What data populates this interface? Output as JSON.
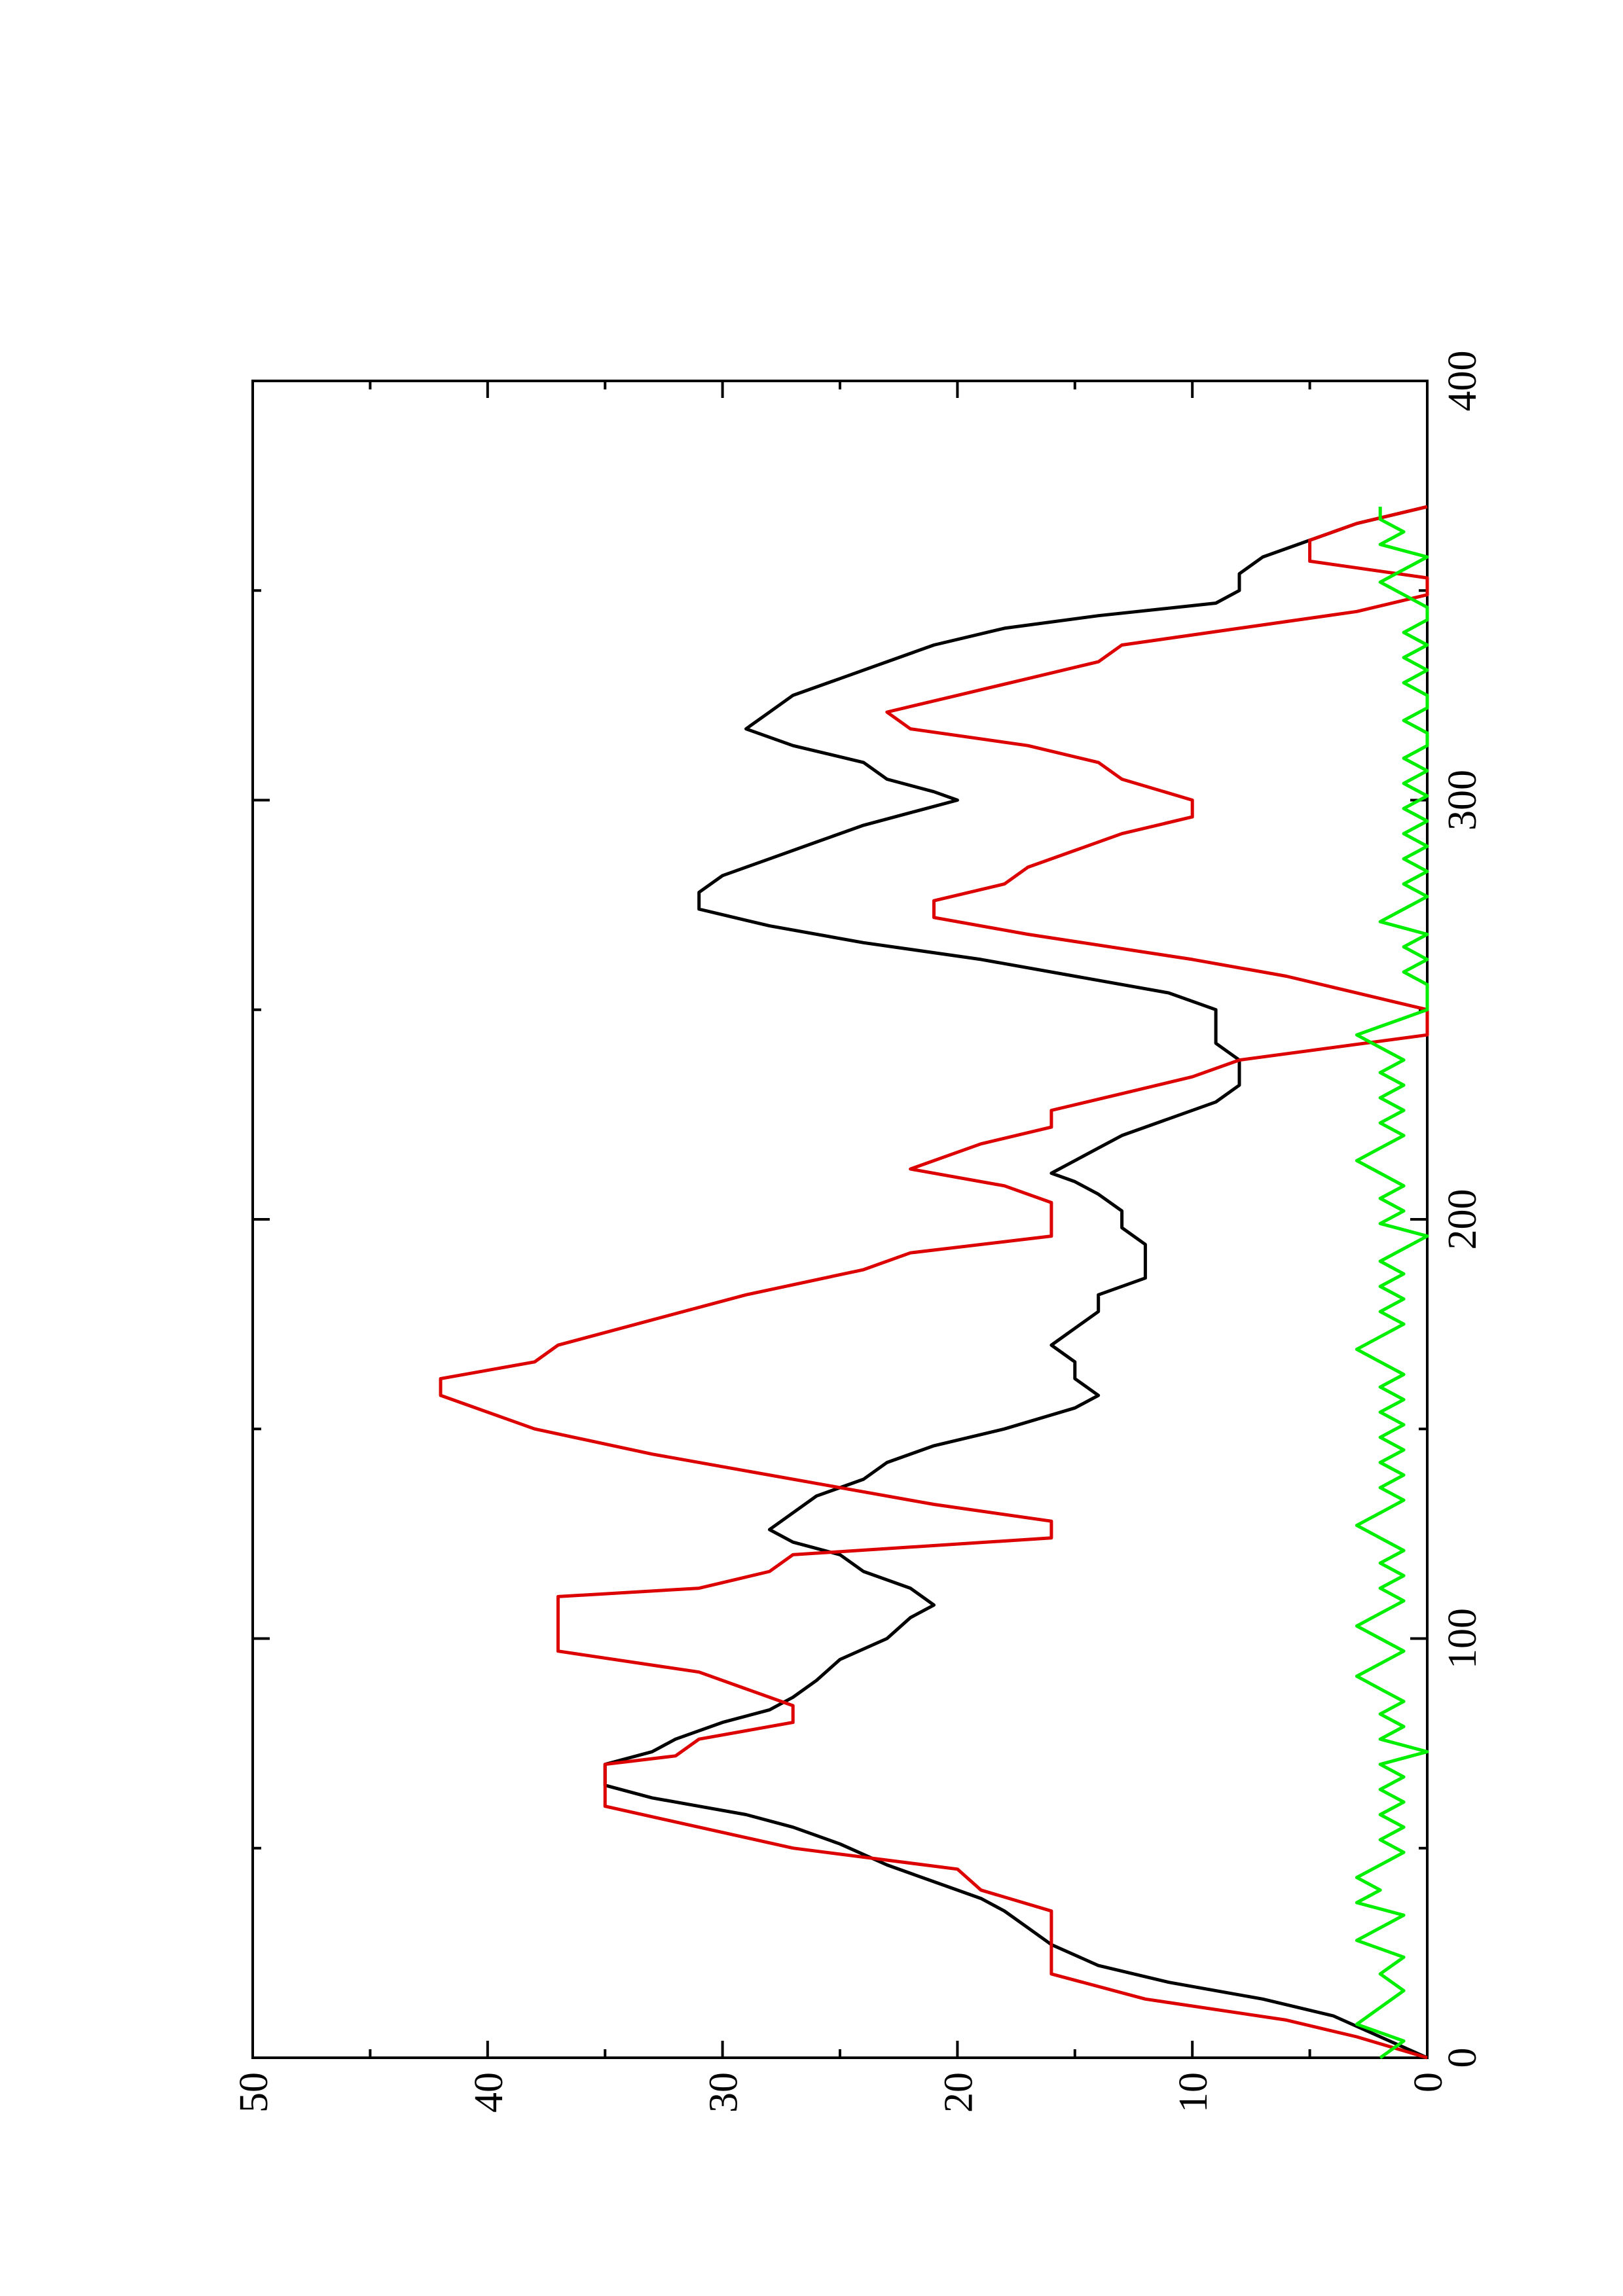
{
  "chart_data": {
    "type": "line",
    "orientation": "rotated-90-ccw",
    "title": "",
    "xlabel": "",
    "ylabel": "",
    "xlim": [
      0,
      400
    ],
    "ylim": [
      0,
      50
    ],
    "x_ticks": [
      0,
      100,
      200,
      300,
      400
    ],
    "x_tick_labels": [
      "0",
      "100",
      "200",
      "300",
      "400"
    ],
    "y_ticks": [
      0,
      10,
      20,
      30,
      40,
      50
    ],
    "y_tick_labels": [
      "0",
      "10",
      "20",
      "30",
      "40",
      "50"
    ],
    "grid": false,
    "legend": "none",
    "series": [
      {
        "color": "#000000",
        "points": [
          [
            0,
            0
          ],
          [
            5,
            2
          ],
          [
            10,
            4
          ],
          [
            14,
            7
          ],
          [
            18,
            11
          ],
          [
            22,
            14
          ],
          [
            27,
            16
          ],
          [
            31,
            17
          ],
          [
            35,
            18
          ],
          [
            38,
            19
          ],
          [
            42,
            21
          ],
          [
            46,
            23
          ],
          [
            51,
            25
          ],
          [
            55,
            27
          ],
          [
            58,
            29
          ],
          [
            60,
            31
          ],
          [
            62,
            33
          ],
          [
            65,
            35
          ],
          [
            68,
            35
          ],
          [
            70,
            35
          ],
          [
            73,
            33
          ],
          [
            76,
            32
          ],
          [
            80,
            30
          ],
          [
            83,
            28
          ],
          [
            86,
            27
          ],
          [
            90,
            26
          ],
          [
            95,
            25
          ],
          [
            100,
            23
          ],
          [
            105,
            22
          ],
          [
            108,
            21
          ],
          [
            112,
            22
          ],
          [
            116,
            24
          ],
          [
            120,
            25
          ],
          [
            123,
            27
          ],
          [
            126,
            28
          ],
          [
            130,
            27
          ],
          [
            134,
            26
          ],
          [
            138,
            24
          ],
          [
            142,
            23
          ],
          [
            146,
            21
          ],
          [
            150,
            18
          ],
          [
            155,
            15
          ],
          [
            158,
            14
          ],
          [
            162,
            15
          ],
          [
            166,
            15
          ],
          [
            170,
            16
          ],
          [
            174,
            15
          ],
          [
            178,
            14
          ],
          [
            182,
            14
          ],
          [
            186,
            12
          ],
          [
            190,
            12
          ],
          [
            194,
            12
          ],
          [
            198,
            13
          ],
          [
            202,
            13
          ],
          [
            206,
            14
          ],
          [
            209,
            15
          ],
          [
            211,
            16
          ],
          [
            214,
            15
          ],
          [
            217,
            14
          ],
          [
            220,
            13
          ],
          [
            224,
            11
          ],
          [
            228,
            9
          ],
          [
            232,
            8
          ],
          [
            235,
            8
          ],
          [
            238,
            8
          ],
          [
            242,
            9
          ],
          [
            246,
            9
          ],
          [
            250,
            9
          ],
          [
            254,
            11
          ],
          [
            258,
            15
          ],
          [
            262,
            19
          ],
          [
            266,
            24
          ],
          [
            270,
            28
          ],
          [
            274,
            31
          ],
          [
            278,
            31
          ],
          [
            282,
            30
          ],
          [
            286,
            28
          ],
          [
            290,
            26
          ],
          [
            294,
            24
          ],
          [
            297,
            22
          ],
          [
            300,
            20
          ],
          [
            302,
            21
          ],
          [
            305,
            23
          ],
          [
            309,
            24
          ],
          [
            313,
            27
          ],
          [
            317,
            29
          ],
          [
            321,
            28
          ],
          [
            325,
            27
          ],
          [
            329,
            25
          ],
          [
            333,
            23
          ],
          [
            337,
            21
          ],
          [
            341,
            18
          ],
          [
            344,
            14
          ],
          [
            347,
            9
          ],
          [
            350,
            8
          ],
          [
            354,
            8
          ],
          [
            358,
            7
          ],
          [
            362,
            5
          ],
          [
            366,
            3
          ],
          [
            370,
            0
          ]
        ]
      },
      {
        "color": "#dd0000",
        "points": [
          [
            0,
            0
          ],
          [
            5,
            3
          ],
          [
            9,
            6
          ],
          [
            14,
            12
          ],
          [
            20,
            16
          ],
          [
            30,
            16
          ],
          [
            35,
            16
          ],
          [
            40,
            19
          ],
          [
            45,
            20
          ],
          [
            50,
            27
          ],
          [
            55,
            31
          ],
          [
            60,
            35
          ],
          [
            65,
            35
          ],
          [
            70,
            35
          ],
          [
            72,
            32
          ],
          [
            76,
            31
          ],
          [
            80,
            27
          ],
          [
            84,
            27
          ],
          [
            88,
            29
          ],
          [
            92,
            31
          ],
          [
            97,
            37
          ],
          [
            110,
            37
          ],
          [
            112,
            31
          ],
          [
            116,
            28
          ],
          [
            120,
            27
          ],
          [
            124,
            16
          ],
          [
            128,
            16
          ],
          [
            132,
            21
          ],
          [
            136,
            25
          ],
          [
            140,
            29
          ],
          [
            144,
            33
          ],
          [
            150,
            38
          ],
          [
            158,
            42
          ],
          [
            162,
            42
          ],
          [
            166,
            38
          ],
          [
            170,
            37
          ],
          [
            176,
            33
          ],
          [
            182,
            29
          ],
          [
            188,
            24
          ],
          [
            192,
            22
          ],
          [
            196,
            16
          ],
          [
            200,
            16
          ],
          [
            204,
            16
          ],
          [
            208,
            18
          ],
          [
            212,
            22
          ],
          [
            218,
            19
          ],
          [
            222,
            16
          ],
          [
            226,
            16
          ],
          [
            230,
            13
          ],
          [
            234,
            10
          ],
          [
            238,
            8
          ],
          [
            244,
            0
          ],
          [
            250,
            0
          ],
          [
            254,
            3
          ],
          [
            258,
            6
          ],
          [
            262,
            10
          ],
          [
            268,
            17
          ],
          [
            272,
            21
          ],
          [
            276,
            21
          ],
          [
            280,
            18
          ],
          [
            284,
            17
          ],
          [
            288,
            15
          ],
          [
            292,
            13
          ],
          [
            296,
            10
          ],
          [
            300,
            10
          ],
          [
            305,
            13
          ],
          [
            309,
            14
          ],
          [
            313,
            17
          ],
          [
            317,
            22
          ],
          [
            321,
            23
          ],
          [
            325,
            20
          ],
          [
            329,
            17
          ],
          [
            333,
            14
          ],
          [
            337,
            13
          ],
          [
            341,
            8
          ],
          [
            345,
            3
          ],
          [
            349,
            0
          ],
          [
            353,
            0
          ],
          [
            357,
            5
          ],
          [
            362,
            5
          ],
          [
            366,
            3
          ],
          [
            370,
            0
          ]
        ]
      },
      {
        "color": "#00ee00",
        "points": [
          [
            0,
            2
          ],
          [
            4,
            1
          ],
          [
            8,
            3
          ],
          [
            12,
            2
          ],
          [
            16,
            1
          ],
          [
            20,
            2
          ],
          [
            24,
            1
          ],
          [
            28,
            3
          ],
          [
            31,
            2
          ],
          [
            34,
            1
          ],
          [
            37,
            3
          ],
          [
            40,
            2
          ],
          [
            43,
            3
          ],
          [
            46,
            2
          ],
          [
            49,
            1
          ],
          [
            52,
            2
          ],
          [
            55,
            1
          ],
          [
            58,
            2
          ],
          [
            61,
            1
          ],
          [
            64,
            2
          ],
          [
            67,
            1
          ],
          [
            70,
            2
          ],
          [
            73,
            0
          ],
          [
            76,
            2
          ],
          [
            79,
            1
          ],
          [
            82,
            2
          ],
          [
            85,
            1
          ],
          [
            88,
            2
          ],
          [
            91,
            3
          ],
          [
            94,
            2
          ],
          [
            97,
            1
          ],
          [
            100,
            2
          ],
          [
            103,
            3
          ],
          [
            106,
            2
          ],
          [
            109,
            1
          ],
          [
            112,
            2
          ],
          [
            115,
            1
          ],
          [
            118,
            2
          ],
          [
            121,
            1
          ],
          [
            124,
            2
          ],
          [
            127,
            3
          ],
          [
            130,
            2
          ],
          [
            133,
            1
          ],
          [
            136,
            2
          ],
          [
            139,
            1
          ],
          [
            142,
            2
          ],
          [
            145,
            1
          ],
          [
            148,
            2
          ],
          [
            151,
            1
          ],
          [
            154,
            2
          ],
          [
            157,
            1
          ],
          [
            160,
            2
          ],
          [
            163,
            1
          ],
          [
            166,
            2
          ],
          [
            169,
            3
          ],
          [
            172,
            2
          ],
          [
            175,
            1
          ],
          [
            178,
            2
          ],
          [
            181,
            1
          ],
          [
            184,
            2
          ],
          [
            187,
            1
          ],
          [
            190,
            2
          ],
          [
            193,
            1
          ],
          [
            196,
            0
          ],
          [
            199,
            2
          ],
          [
            202,
            1
          ],
          [
            205,
            2
          ],
          [
            208,
            1
          ],
          [
            211,
            2
          ],
          [
            214,
            3
          ],
          [
            217,
            2
          ],
          [
            220,
            1
          ],
          [
            223,
            2
          ],
          [
            226,
            1
          ],
          [
            229,
            2
          ],
          [
            232,
            1
          ],
          [
            235,
            2
          ],
          [
            238,
            1
          ],
          [
            241,
            2
          ],
          [
            244,
            3
          ],
          [
            246,
            2
          ],
          [
            248,
            1
          ],
          [
            250,
            0
          ],
          [
            253,
            0
          ],
          [
            256,
            0
          ],
          [
            259,
            1
          ],
          [
            262,
            0
          ],
          [
            265,
            1
          ],
          [
            268,
            0
          ],
          [
            271,
            2
          ],
          [
            274,
            1
          ],
          [
            277,
            0
          ],
          [
            280,
            1
          ],
          [
            283,
            0
          ],
          [
            286,
            1
          ],
          [
            289,
            0
          ],
          [
            292,
            1
          ],
          [
            295,
            0
          ],
          [
            298,
            1
          ],
          [
            301,
            0
          ],
          [
            304,
            1
          ],
          [
            307,
            0
          ],
          [
            310,
            1
          ],
          [
            313,
            0
          ],
          [
            316,
            0
          ],
          [
            319,
            1
          ],
          [
            322,
            0
          ],
          [
            325,
            0
          ],
          [
            328,
            1
          ],
          [
            331,
            0
          ],
          [
            334,
            1
          ],
          [
            337,
            0
          ],
          [
            340,
            1
          ],
          [
            343,
            0
          ],
          [
            346,
            0
          ],
          [
            349,
            1
          ],
          [
            352,
            2
          ],
          [
            355,
            1
          ],
          [
            358,
            0
          ],
          [
            361,
            2
          ],
          [
            364,
            1
          ],
          [
            367,
            2
          ],
          [
            370,
            2
          ]
        ]
      }
    ]
  }
}
